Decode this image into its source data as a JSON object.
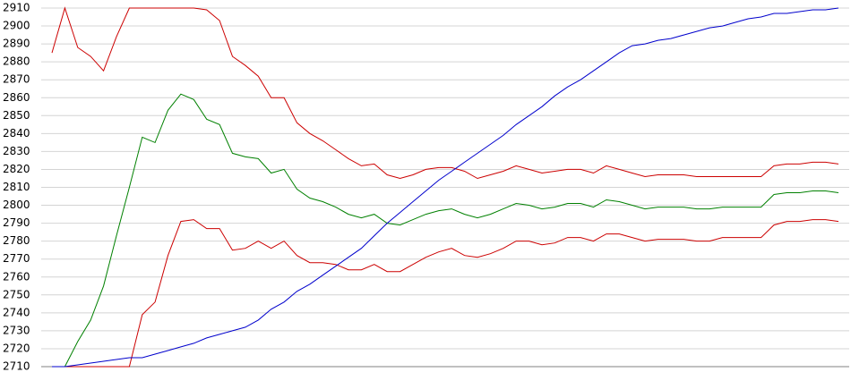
{
  "chart_data": {
    "type": "line",
    "categories": [
      null,
      null,
      null,
      null,
      null,
      null,
      null,
      null,
      null,
      null,
      null,
      null,
      null,
      null,
      null,
      null,
      null,
      null,
      null,
      null,
      null,
      null,
      null,
      null,
      null,
      null,
      null,
      null,
      null,
      null,
      null,
      null,
      null,
      null,
      null,
      null,
      null,
      null,
      null,
      null,
      null,
      null,
      null,
      null,
      null,
      null,
      null,
      null,
      null,
      null,
      null,
      null,
      null,
      null,
      null,
      null,
      null,
      null,
      null,
      null,
      null,
      null
    ],
    "series": [
      {
        "color": "#cc0000",
        "values": [
          2885,
          2910,
          2888,
          2883,
          2875,
          2894,
          2910,
          2910,
          2910,
          2910,
          2910,
          2910,
          2909,
          2903,
          2883,
          2878,
          2872,
          2860,
          2860,
          2846,
          2840,
          2836,
          2831,
          2826,
          2822,
          2823,
          2817,
          2815,
          2817,
          2820,
          2821,
          2821,
          2819,
          2815,
          2817,
          2819,
          2822,
          2820,
          2818,
          2819,
          2820,
          2820,
          2818,
          2822,
          2820,
          2818,
          2816,
          2817,
          2817,
          2817,
          2816,
          2816,
          2816,
          2816,
          2816,
          2816,
          2822,
          2823,
          2823,
          2824,
          2824,
          2823
        ]
      },
      {
        "color": "#008000",
        "values": [
          2710,
          2710,
          2724,
          2736,
          2755,
          2783,
          2810,
          2838,
          2835,
          2853,
          2862,
          2859,
          2848,
          2845,
          2829,
          2827,
          2826,
          2818,
          2820,
          2809,
          2804,
          2802,
          2799,
          2795,
          2793,
          2795,
          2790,
          2789,
          2792,
          2795,
          2797,
          2798,
          2795,
          2793,
          2795,
          2798,
          2801,
          2800,
          2798,
          2799,
          2801,
          2801,
          2799,
          2803,
          2802,
          2800,
          2798,
          2799,
          2799,
          2799,
          2798,
          2798,
          2799,
          2799,
          2799,
          2799,
          2806,
          2807,
          2807,
          2808,
          2808,
          2807
        ]
      },
      {
        "color": "#cc0000",
        "values": [
          2710,
          2710,
          2710,
          2710,
          2710,
          2710,
          2710,
          2739,
          2746,
          2772,
          2791,
          2792,
          2787,
          2787,
          2775,
          2776,
          2780,
          2776,
          2780,
          2772,
          2768,
          2768,
          2767,
          2764,
          2764,
          2767,
          2763,
          2763,
          2767,
          2771,
          2774,
          2776,
          2772,
          2771,
          2773,
          2776,
          2780,
          2780,
          2778,
          2779,
          2782,
          2782,
          2780,
          2784,
          2784,
          2782,
          2780,
          2781,
          2781,
          2781,
          2780,
          2780,
          2782,
          2782,
          2782,
          2782,
          2789,
          2791,
          2791,
          2792,
          2792,
          2791
        ]
      },
      {
        "color": "#0000cc",
        "values": [
          2710,
          2710,
          2711,
          2712,
          2713,
          2714,
          2715,
          2715,
          2717,
          2719,
          2721,
          2723,
          2726,
          2728,
          2730,
          2732,
          2736,
          2742,
          2746,
          2752,
          2756,
          2761,
          2766,
          2771,
          2776,
          2783,
          2790,
          2796,
          2802,
          2808,
          2814,
          2819,
          2824,
          2829,
          2834,
          2839,
          2845,
          2850,
          2855,
          2861,
          2866,
          2870,
          2875,
          2880,
          2885,
          2889,
          2890,
          2892,
          2893,
          2895,
          2897,
          2899,
          2900,
          2902,
          2904,
          2905,
          2907,
          2907,
          2908,
          2909,
          2909,
          2910
        ]
      }
    ],
    "ylim": [
      2710,
      2910
    ],
    "yticks": [
      2710,
      2720,
      2730,
      2740,
      2750,
      2760,
      2770,
      2780,
      2790,
      2800,
      2810,
      2820,
      2830,
      2840,
      2850,
      2860,
      2870,
      2880,
      2890,
      2900,
      2910
    ],
    "grid": true
  }
}
